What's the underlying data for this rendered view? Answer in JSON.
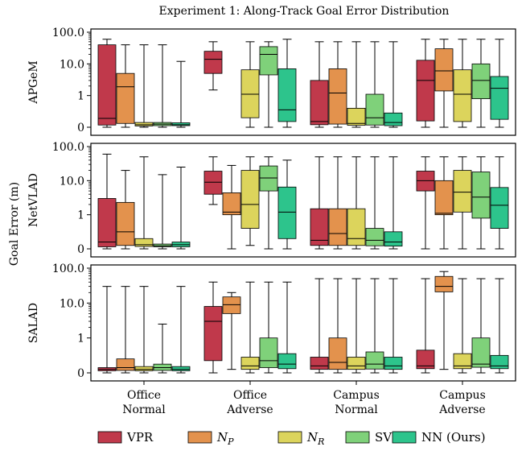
{
  "chart_data": {
    "type": "box",
    "title": "Experiment 1: Along-Track Goal Error Distribution",
    "ylabel": "Goal Error (m)",
    "yscale": "symlog",
    "ylim": [
      0,
      100
    ],
    "yticks": [
      0,
      1,
      10,
      100
    ],
    "ytick_labels": [
      "0",
      "1",
      "10.0",
      "100.0"
    ],
    "groups": [
      {
        "label_lines": [
          "Office",
          "Normal"
        ]
      },
      {
        "label_lines": [
          "Office",
          "Adverse"
        ]
      },
      {
        "label_lines": [
          "Campus",
          "Normal"
        ]
      },
      {
        "label_lines": [
          "Campus",
          "Adverse"
        ]
      }
    ],
    "series": [
      {
        "name": "VPR",
        "legend_main": "VPR",
        "legend_sub": "",
        "color": "#c0394b"
      },
      {
        "name": "N_P",
        "legend_main": "N",
        "legend_sub": "P",
        "color": "#e3924d"
      },
      {
        "name": "N_R",
        "legend_main": "N",
        "legend_sub": "R",
        "color": "#dcd45c"
      },
      {
        "name": "SVM",
        "legend_main": "SVM",
        "legend_sub": "",
        "color": "#7fd17a"
      },
      {
        "name": "NN (Ours)",
        "legend_main": "NN (Ours)",
        "legend_sub": "",
        "color": "#2dc48c"
      }
    ],
    "panels": [
      {
        "label": "APGeM",
        "boxes": [
          [
            [
              0,
              0.07,
              0.28,
              40,
              60
            ],
            [
              0,
              0.12,
              1.9,
              5,
              40
            ],
            [
              0,
              0.04,
              0.08,
              0.15,
              40
            ],
            [
              0,
              0.05,
              0.1,
              0.15,
              40
            ],
            [
              0,
              0.05,
              0.08,
              0.14,
              12
            ]
          ],
          [
            [
              1.5,
              5,
              14,
              25,
              50
            ],
            null,
            [
              0,
              0.3,
              1.1,
              6.5,
              50
            ],
            [
              0,
              4.5,
              20,
              35,
              50
            ],
            [
              0,
              0.18,
              0.55,
              7,
              60
            ]
          ],
          [
            [
              0,
              0.08,
              0.18,
              3,
              50
            ],
            [
              0,
              0.1,
              1.2,
              7,
              50
            ],
            [
              0,
              0.06,
              0.12,
              0.6,
              50
            ],
            [
              0,
              0.07,
              0.3,
              1.1,
              50
            ],
            [
              0,
              0.05,
              0.15,
              0.45,
              50
            ]
          ],
          [
            [
              0,
              0.2,
              3,
              13,
              60
            ],
            [
              0,
              1.4,
              6,
              30,
              60
            ],
            [
              0,
              0.18,
              1.1,
              6.5,
              60
            ],
            [
              0,
              0.9,
              3,
              10,
              60
            ],
            [
              0,
              0.25,
              1.7,
              4,
              60
            ]
          ]
        ]
      },
      {
        "label": "NetVLAD",
        "boxes": [
          [
            [
              0,
              0.06,
              0.2,
              3,
              60
            ],
            [
              0,
              0.1,
              0.5,
              2.3,
              20
            ],
            [
              0,
              0.07,
              0.12,
              0.3,
              50
            ],
            [
              0,
              0.06,
              0.09,
              0.14,
              15
            ],
            [
              0,
              0.06,
              0.12,
              0.2,
              25
            ]
          ],
          [
            [
              2,
              4,
              9,
              19,
              50
            ],
            [
              0,
              1,
              1.2,
              4.4,
              28
            ],
            [
              0.1,
              0.6,
              2,
              20,
              50
            ],
            [
              0,
              5,
              12,
              27,
              50
            ],
            [
              0,
              0.3,
              1.2,
              6.5,
              40
            ]
          ],
          [
            [
              0,
              0.1,
              0.25,
              1.5,
              50
            ],
            [
              0,
              0.1,
              0.45,
              1.5,
              50
            ],
            [
              0,
              0.1,
              0.3,
              1.5,
              50
            ],
            [
              0,
              0.09,
              0.25,
              0.6,
              50
            ],
            [
              0,
              0.08,
              0.2,
              0.5,
              50
            ]
          ],
          [
            [
              0,
              5,
              10,
              19,
              50
            ],
            [
              0,
              1,
              1.1,
              10,
              50
            ],
            [
              0,
              1.2,
              4.6,
              20,
              50
            ],
            [
              0,
              0.9,
              3.3,
              18,
              50
            ],
            [
              0,
              0.6,
              1.9,
              6.3,
              50
            ]
          ]
        ]
      },
      {
        "label": "SALAD",
        "boxes": [
          [
            [
              0,
              0.06,
              0.1,
              0.15,
              30
            ],
            [
              0,
              0.07,
              0.15,
              0.4,
              30
            ],
            [
              0,
              0.06,
              0.1,
              0.18,
              30
            ],
            [
              0,
              0.07,
              0.15,
              0.25,
              2.5
            ],
            [
              0,
              0.06,
              0.1,
              0.18,
              30
            ]
          ],
          [
            [
              0,
              0.35,
              3,
              8,
              40
            ],
            [
              0.1,
              5,
              9,
              15,
              20
            ],
            [
              0,
              0.1,
              0.2,
              0.45,
              40
            ],
            [
              0,
              0.15,
              0.35,
              1,
              40
            ],
            [
              0,
              0.12,
              0.25,
              0.55,
              40
            ]
          ],
          [
            [
              0,
              0.1,
              0.2,
              0.45,
              50
            ],
            [
              0,
              0.1,
              0.3,
              1,
              50
            ],
            [
              0,
              0.1,
              0.2,
              0.45,
              50
            ],
            [
              0,
              0.11,
              0.25,
              0.6,
              50
            ],
            [
              0,
              0.1,
              0.2,
              0.45,
              50
            ]
          ],
          [
            [
              0,
              0.12,
              0.2,
              0.65,
              50
            ],
            [
              0.1,
              21,
              30,
              58,
              80
            ],
            [
              0,
              0.12,
              0.2,
              0.55,
              50
            ],
            [
              0,
              0.16,
              0.25,
              1,
              50
            ],
            [
              0,
              0.12,
              0.2,
              0.5,
              50
            ]
          ]
        ]
      }
    ]
  }
}
